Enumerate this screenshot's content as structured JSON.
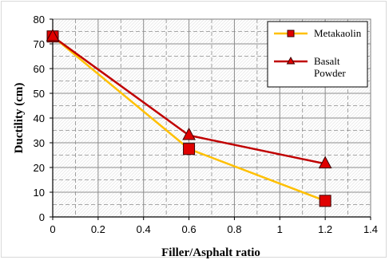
{
  "chart_data": {
    "type": "line",
    "xlabel": "Filler/Asphalt ratio",
    "ylabel": "Ductility (cm)",
    "xlim": [
      0,
      1.4
    ],
    "ylim": [
      0,
      80
    ],
    "x_ticks": [
      "0",
      "0.2",
      "0.4",
      "0.6",
      "0.8",
      "1",
      "1.2",
      "1.4"
    ],
    "y_ticks": [
      "0",
      "10",
      "20",
      "30",
      "40",
      "50",
      "60",
      "70",
      "80"
    ],
    "grid": true,
    "legend_position": "top-right",
    "series": [
      {
        "name": "Metakaolin",
        "line_color": "#FFC000",
        "marker": "square",
        "marker_color": "#E00000",
        "x": [
          0,
          0.6,
          1.2
        ],
        "y": [
          73,
          27.5,
          6.5
        ]
      },
      {
        "name": "Basalt Powder",
        "name_lines": [
          "Basalt",
          "Powder"
        ],
        "line_color": "#C00000",
        "marker": "triangle",
        "marker_color": "#E00000",
        "x": [
          0,
          0.6,
          1.2
        ],
        "y": [
          73,
          33,
          21.5
        ]
      }
    ]
  }
}
